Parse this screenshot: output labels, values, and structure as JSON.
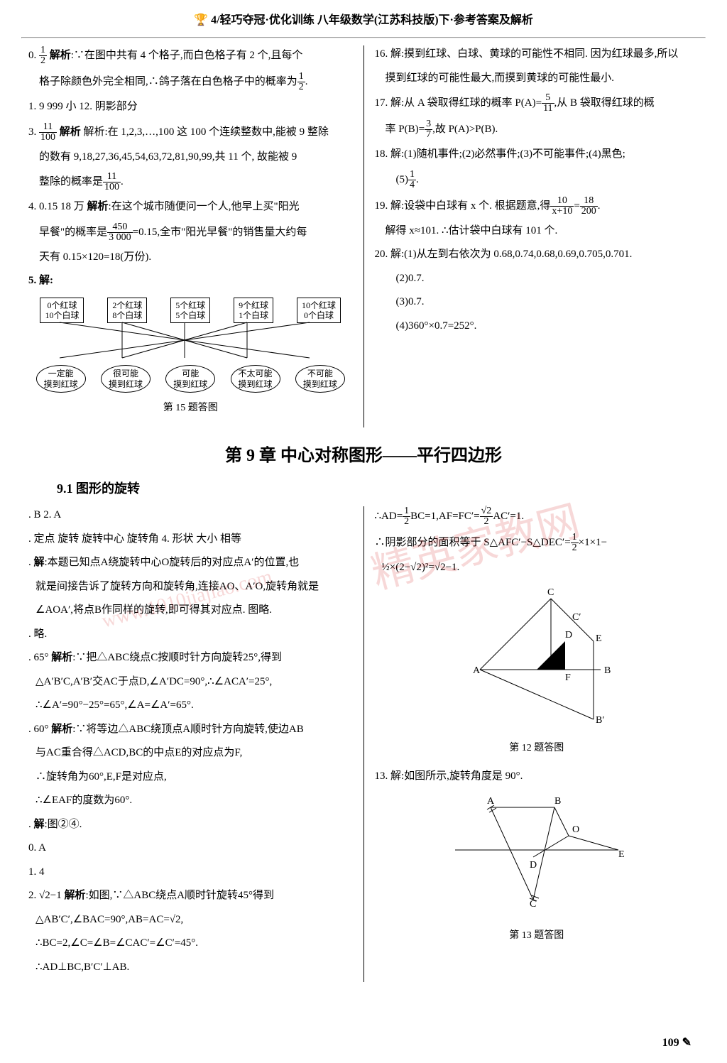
{
  "header": {
    "brand_prefix": "4/",
    "brand": "轻巧夺冠·优化训练",
    "subject": "八年级数学(江苏科技版)下·参考答案及解析"
  },
  "left_col": {
    "item0": "0. ½  解析:∵在图中共有 4 个格子,而白色格子有 2 个,且每个",
    "item0b": "格子除颜色外完全相同,∴鸽子落在白色格子中的概率为½.",
    "item1": "1. 9 999  小  12. 阴影部分",
    "item3_pre": "3.",
    "item3_frac_num": "11",
    "item3_frac_den": "100",
    "item3": "  解析:在 1,2,3,…,100 这 100 个连续整数中,能被 9 整除",
    "item3b": "的数有 9,18,27,36,45,54,63,72,81,90,99,共 11 个, 故能被 9",
    "item3c_pre": "整除的概率是",
    "item3c_num": "11",
    "item3c_den": "100",
    "item3c_post": ".",
    "item4": "4. 0.15  18 万  解析:在这个城市随便问一个人,他早上买\"阳光",
    "item4b_pre": "早餐\"的概率是",
    "item4b_num": "450",
    "item4b_den": "3 000",
    "item4b_mid": "=0.15,全市\"阳光早餐\"的销售量大约每",
    "item4c": "天有 0.15×120=18(万份).",
    "item5": "5. 解:",
    "q5": {
      "boxes": [
        {
          "l1": "0个红球",
          "l2": "10个白球"
        },
        {
          "l1": "2个红球",
          "l2": "8个白球"
        },
        {
          "l1": "5个红球",
          "l2": "5个白球"
        },
        {
          "l1": "9个红球",
          "l2": "1个白球"
        },
        {
          "l1": "10个红球",
          "l2": "0个白球"
        }
      ],
      "ovals": [
        {
          "l1": "一定能",
          "l2": "摸到红球"
        },
        {
          "l1": "很可能",
          "l2": "摸到红球"
        },
        {
          "l1": "可能",
          "l2": "摸到红球"
        },
        {
          "l1": "不太可能",
          "l2": "摸到红球"
        },
        {
          "l1": "不可能",
          "l2": "摸到红球"
        }
      ]
    },
    "caption15": "第 15 题答图"
  },
  "right_col": {
    "item16": "16. 解:摸到红球、白球、黄球的可能性不相同. 因为红球最多,所以",
    "item16b": "摸到红球的可能性最大,而摸到黄球的可能性最小.",
    "item17_pre": "17. 解:从 A 袋取得红球的概率 P(A)=",
    "item17_num": "5",
    "item17_den": "11",
    "item17_post": ",从 B 袋取得红球的概",
    "item17b_pre": "率 P(B)=",
    "item17b_num": "3",
    "item17b_den": "7",
    "item17b_post": ",故 P(A)>P(B).",
    "item18": "18. 解:(1)随机事件;(2)必然事件;(3)不可能事件;(4)黑色;",
    "item18b_pre": "(5)",
    "item18b_num": "1",
    "item18b_den": "4",
    "item18b_post": ".",
    "item19_pre": "19. 解:设袋中白球有 x 个. 根据题意,得",
    "item19_num1": "10",
    "item19_den1": "x+10",
    "item19_mid": "=",
    "item19_num2": "18",
    "item19_den2": "200",
    "item19_post": ".",
    "item19b": "解得 x≈101. ∴估计袋中白球有 101 个.",
    "item20": "20. 解:(1)从左到右依次为 0.68,0.74,0.68,0.69,0.705,0.701.",
    "item20b": "(2)0.7.",
    "item20c": "(3)0.7.",
    "item20d": "(4)360°×0.7=252°."
  },
  "chapter": {
    "title": "第 9 章  中心对称图形——平行四边形",
    "section": "9.1  图形的旋转"
  },
  "lower_left": {
    "l1": ". B  2. A",
    "l2": ". 定点  旋转  旋转中心  旋转角  4. 形状  大小  相等",
    "l3": ". 解:本题已知点A绕旋转中心O旋转后的对应点A′的位置,也",
    "l3b": "就是间接告诉了旋转方向和旋转角,连接AO、A′O,旋转角就是",
    "l3c": "∠AOA′,将点B作同样的旋转,即可得其对应点. 图略.",
    "l4": ". 略.",
    "l5": ". 65°  解析:∵把△ABC绕点C按顺时针方向旋转25°,得到",
    "l5b": "△A′B′C,A′B′交AC于点D,∠A′DC=90°,∴∠ACA′=25°,",
    "l5c": "∴∠A′=90°−25°=65°,∠A=∠A′=65°.",
    "l6": ". 60°  解析:∵将等边△ABC绕顶点A顺时针方向旋转,使边AB",
    "l6b": "与AC重合得△ACD,BC的中点E的对应点为F,",
    "l6c": "∴旋转角为60°,E,F是对应点,",
    "l6d": "∴∠EAF的度数为60°.",
    "l7": ". 解:图②④.",
    "l8": "0. A",
    "l9": "1. 4",
    "l10": "2. √2−1  解析:如图,∵△ABC绕点A顺时针旋转45°得到",
    "l10b": "△AB′C′,∠BAC=90°,AB=AC=√2,",
    "l10c": "∴BC=2,∠C=∠B=∠CAC′=∠C′=45°.",
    "l10d": "∴AD⊥BC,B′C′⊥AB."
  },
  "lower_right": {
    "r1_pre": "∴AD=",
    "r1_num1": "1",
    "r1_den1": "2",
    "r1_mid1": "BC=1,AF=FC′=",
    "r1_sqrt": "√2",
    "r1_den2": "2",
    "r1_post": "AC′=1.",
    "r2_pre": "∴阴影部分的面积等于 S△AFC′−S△DEC′=",
    "r2_num": "1",
    "r2_den": "2",
    "r2_post": "×1×1−",
    "r3": "½×(2−√2)²=√2−1.",
    "caption12": "第 12 题答图",
    "r13": "13. 解:如图所示,旋转角度是 90°.",
    "caption13": "第 13 题答图"
  },
  "watermark1": "精英家教网",
  "watermark2": "www.1010jiajiao.com",
  "page_number": "109"
}
